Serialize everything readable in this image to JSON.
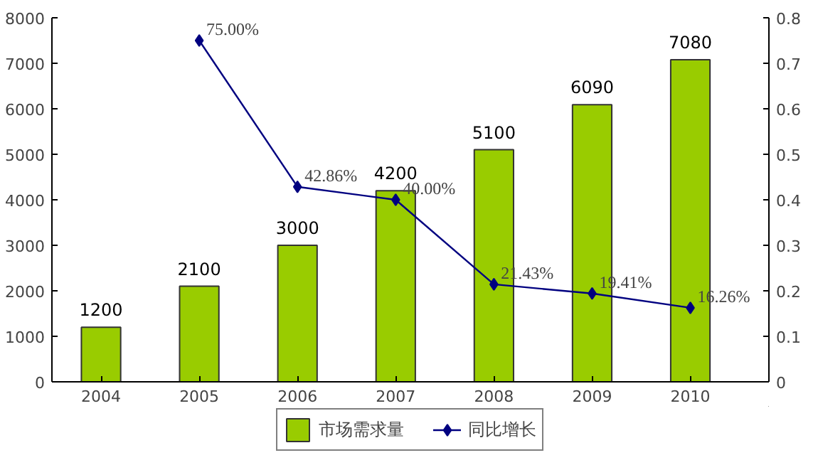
{
  "chart_data": {
    "type": "bar",
    "categories": [
      "2004",
      "2005",
      "2006",
      "2007",
      "2008",
      "2009",
      "2010"
    ],
    "series": [
      {
        "name": "市场需求量",
        "color": "#99cc00",
        "values": [
          1200,
          2100,
          3000,
          4200,
          5100,
          6090,
          7080
        ]
      },
      {
        "name": "同比增长",
        "type": "line",
        "axis": "y2",
        "color": "#000080",
        "marker": "diamond",
        "values": [
          null,
          0.75,
          0.4286,
          0.4,
          0.2143,
          0.1941,
          0.1626
        ],
        "value_labels": [
          null,
          "75.00%",
          "42.86%",
          "40.00%",
          "21.43%",
          "19.41%",
          "16.26%"
        ]
      }
    ],
    "data_labels": true,
    "ylim": [
      0,
      8000
    ],
    "yticks": [
      0,
      1000,
      2000,
      3000,
      4000,
      5000,
      6000,
      7000,
      8000
    ],
    "y2lim": [
      0,
      0.8
    ],
    "y2ticks": [
      0,
      0.1,
      0.2,
      0.3,
      0.4,
      0.5,
      0.6,
      0.7,
      0.8
    ],
    "grid": false,
    "legend": "bottom"
  }
}
